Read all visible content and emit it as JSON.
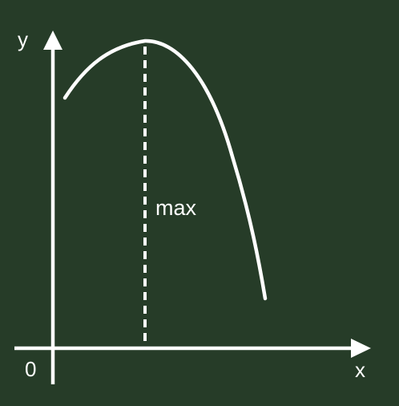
{
  "colors": {
    "background": "#263c28",
    "foreground": "#ffffff"
  },
  "labels": {
    "y_axis": "y",
    "x_axis": "x",
    "origin": "0",
    "max": "max"
  }
}
